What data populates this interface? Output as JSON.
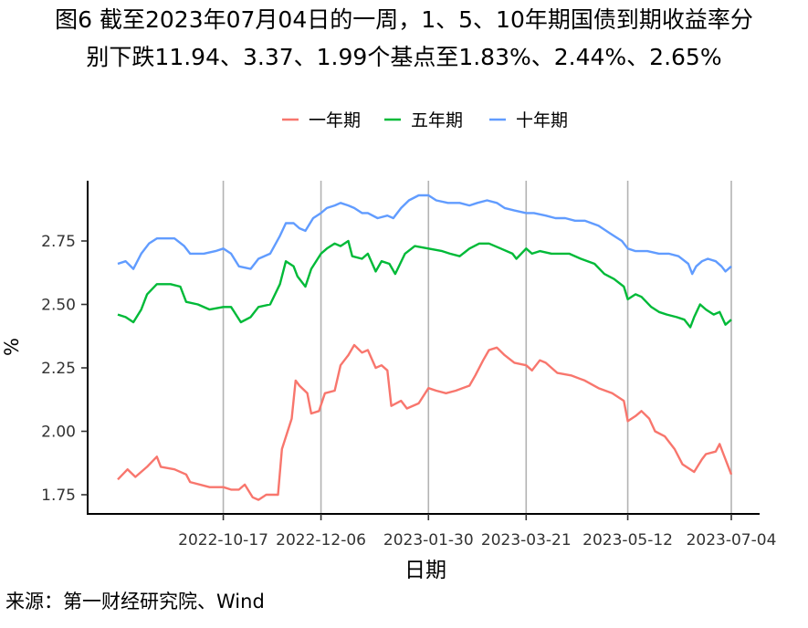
{
  "title_line1": "图6  截至2023年07月04日的一周，1、5、10年期国债到期收益率分",
  "title_line2": "别下跌11.94、3.37、1.99个基点至1.83%、2.44%、2.65%",
  "source": "来源：第一财经研究院、Wind",
  "chart_data": {
    "type": "line",
    "xlabel": "日期",
    "ylabel": "%",
    "x_range": [
      "2022-08-24",
      "2023-07-04"
    ],
    "ylim": [
      1.7,
      2.93
    ],
    "x_ticks": [
      "2022-10-17",
      "2022-12-06",
      "2023-01-30",
      "2023-03-21",
      "2023-05-12",
      "2023-07-04"
    ],
    "y_ticks": [
      "1.75",
      "2.00",
      "2.25",
      "2.50",
      "2.75"
    ],
    "legend_position": "top",
    "grid": "vertical major lines at x ticks",
    "series": [
      {
        "name": "一年期",
        "color": "#F8766D",
        "points": [
          [
            "2022-08-24",
            1.81
          ],
          [
            "2022-08-29",
            1.85
          ],
          [
            "2022-09-02",
            1.82
          ],
          [
            "2022-09-08",
            1.86
          ],
          [
            "2022-09-13",
            1.9
          ],
          [
            "2022-09-15",
            1.86
          ],
          [
            "2022-09-22",
            1.85
          ],
          [
            "2022-09-28",
            1.83
          ],
          [
            "2022-09-30",
            1.8
          ],
          [
            "2022-10-10",
            1.78
          ],
          [
            "2022-10-17",
            1.78
          ],
          [
            "2022-10-21",
            1.77
          ],
          [
            "2022-10-25",
            1.77
          ],
          [
            "2022-10-28",
            1.79
          ],
          [
            "2022-11-01",
            1.74
          ],
          [
            "2022-11-04",
            1.73
          ],
          [
            "2022-11-08",
            1.75
          ],
          [
            "2022-11-14",
            1.75
          ],
          [
            "2022-11-16",
            1.93
          ],
          [
            "2022-11-21",
            2.05
          ],
          [
            "2022-11-23",
            2.2
          ],
          [
            "2022-11-25",
            2.18
          ],
          [
            "2022-11-29",
            2.15
          ],
          [
            "2022-12-01",
            2.07
          ],
          [
            "2022-12-05",
            2.08
          ],
          [
            "2022-12-08",
            2.15
          ],
          [
            "2022-12-13",
            2.16
          ],
          [
            "2022-12-16",
            2.26
          ],
          [
            "2022-12-20",
            2.3
          ],
          [
            "2022-12-23",
            2.34
          ],
          [
            "2022-12-27",
            2.31
          ],
          [
            "2022-12-30",
            2.32
          ],
          [
            "2023-01-03",
            2.25
          ],
          [
            "2023-01-06",
            2.26
          ],
          [
            "2023-01-09",
            2.24
          ],
          [
            "2023-01-11",
            2.1
          ],
          [
            "2023-01-16",
            2.12
          ],
          [
            "2023-01-19",
            2.09
          ],
          [
            "2023-01-25",
            2.11
          ],
          [
            "2023-01-30",
            2.17
          ],
          [
            "2023-02-03",
            2.16
          ],
          [
            "2023-02-08",
            2.15
          ],
          [
            "2023-02-13",
            2.16
          ],
          [
            "2023-02-20",
            2.18
          ],
          [
            "2023-02-23",
            2.22
          ],
          [
            "2023-02-27",
            2.28
          ],
          [
            "2023-03-02",
            2.32
          ],
          [
            "2023-03-06",
            2.33
          ],
          [
            "2023-03-10",
            2.3
          ],
          [
            "2023-03-15",
            2.27
          ],
          [
            "2023-03-21",
            2.26
          ],
          [
            "2023-03-24",
            2.24
          ],
          [
            "2023-03-28",
            2.28
          ],
          [
            "2023-03-31",
            2.27
          ],
          [
            "2023-04-06",
            2.23
          ],
          [
            "2023-04-13",
            2.22
          ],
          [
            "2023-04-20",
            2.2
          ],
          [
            "2023-04-27",
            2.17
          ],
          [
            "2023-05-04",
            2.15
          ],
          [
            "2023-05-10",
            2.12
          ],
          [
            "2023-05-12",
            2.04
          ],
          [
            "2023-05-16",
            2.06
          ],
          [
            "2023-05-19",
            2.08
          ],
          [
            "2023-05-23",
            2.05
          ],
          [
            "2023-05-26",
            2.0
          ],
          [
            "2023-05-31",
            1.98
          ],
          [
            "2023-06-05",
            1.93
          ],
          [
            "2023-06-09",
            1.87
          ],
          [
            "2023-06-13",
            1.85
          ],
          [
            "2023-06-15",
            1.84
          ],
          [
            "2023-06-19",
            1.89
          ],
          [
            "2023-06-21",
            1.91
          ],
          [
            "2023-06-26",
            1.92
          ],
          [
            "2023-06-28",
            1.95
          ],
          [
            "2023-06-30",
            1.91
          ],
          [
            "2023-07-04",
            1.83
          ]
        ]
      },
      {
        "name": "五年期",
        "color": "#00BA38",
        "points": [
          [
            "2022-08-24",
            2.46
          ],
          [
            "2022-08-28",
            2.45
          ],
          [
            "2022-09-01",
            2.43
          ],
          [
            "2022-09-05",
            2.48
          ],
          [
            "2022-09-08",
            2.54
          ],
          [
            "2022-09-13",
            2.58
          ],
          [
            "2022-09-20",
            2.58
          ],
          [
            "2022-09-25",
            2.57
          ],
          [
            "2022-09-28",
            2.51
          ],
          [
            "2022-10-04",
            2.5
          ],
          [
            "2022-10-10",
            2.48
          ],
          [
            "2022-10-17",
            2.49
          ],
          [
            "2022-10-21",
            2.49
          ],
          [
            "2022-10-26",
            2.43
          ],
          [
            "2022-10-31",
            2.45
          ],
          [
            "2022-11-04",
            2.49
          ],
          [
            "2022-11-10",
            2.5
          ],
          [
            "2022-11-15",
            2.58
          ],
          [
            "2022-11-18",
            2.67
          ],
          [
            "2022-11-22",
            2.65
          ],
          [
            "2022-11-24",
            2.61
          ],
          [
            "2022-11-28",
            2.57
          ],
          [
            "2022-12-01",
            2.64
          ],
          [
            "2022-12-06",
            2.7
          ],
          [
            "2022-12-09",
            2.72
          ],
          [
            "2022-12-13",
            2.74
          ],
          [
            "2022-12-16",
            2.73
          ],
          [
            "2022-12-20",
            2.75
          ],
          [
            "2022-12-22",
            2.69
          ],
          [
            "2022-12-27",
            2.68
          ],
          [
            "2022-12-30",
            2.7
          ],
          [
            "2023-01-03",
            2.63
          ],
          [
            "2023-01-06",
            2.67
          ],
          [
            "2023-01-10",
            2.66
          ],
          [
            "2023-01-13",
            2.62
          ],
          [
            "2023-01-18",
            2.7
          ],
          [
            "2023-01-23",
            2.73
          ],
          [
            "2023-01-30",
            2.72
          ],
          [
            "2023-02-06",
            2.71
          ],
          [
            "2023-02-10",
            2.7
          ],
          [
            "2023-02-15",
            2.69
          ],
          [
            "2023-02-20",
            2.72
          ],
          [
            "2023-02-25",
            2.74
          ],
          [
            "2023-03-02",
            2.74
          ],
          [
            "2023-03-08",
            2.72
          ],
          [
            "2023-03-14",
            2.7
          ],
          [
            "2023-03-16",
            2.68
          ],
          [
            "2023-03-21",
            2.72
          ],
          [
            "2023-03-24",
            2.7
          ],
          [
            "2023-03-28",
            2.71
          ],
          [
            "2023-04-03",
            2.7
          ],
          [
            "2023-04-07",
            2.7
          ],
          [
            "2023-04-12",
            2.7
          ],
          [
            "2023-04-18",
            2.68
          ],
          [
            "2023-04-25",
            2.66
          ],
          [
            "2023-04-30",
            2.62
          ],
          [
            "2023-05-05",
            2.6
          ],
          [
            "2023-05-10",
            2.57
          ],
          [
            "2023-05-12",
            2.52
          ],
          [
            "2023-05-16",
            2.54
          ],
          [
            "2023-05-19",
            2.53
          ],
          [
            "2023-05-24",
            2.49
          ],
          [
            "2023-05-28",
            2.47
          ],
          [
            "2023-06-01",
            2.46
          ],
          [
            "2023-06-06",
            2.45
          ],
          [
            "2023-06-10",
            2.44
          ],
          [
            "2023-06-13",
            2.41
          ],
          [
            "2023-06-15",
            2.45
          ],
          [
            "2023-06-18",
            2.5
          ],
          [
            "2023-06-21",
            2.48
          ],
          [
            "2023-06-25",
            2.46
          ],
          [
            "2023-06-28",
            2.47
          ],
          [
            "2023-07-01",
            2.42
          ],
          [
            "2023-07-04",
            2.44
          ]
        ]
      },
      {
        "name": "十年期",
        "color": "#619CFF",
        "points": [
          [
            "2022-08-24",
            2.66
          ],
          [
            "2022-08-28",
            2.67
          ],
          [
            "2022-09-01",
            2.64
          ],
          [
            "2022-09-05",
            2.7
          ],
          [
            "2022-09-09",
            2.74
          ],
          [
            "2022-09-13",
            2.76
          ],
          [
            "2022-09-22",
            2.76
          ],
          [
            "2022-09-27",
            2.73
          ],
          [
            "2022-09-30",
            2.7
          ],
          [
            "2022-10-07",
            2.7
          ],
          [
            "2022-10-13",
            2.71
          ],
          [
            "2022-10-17",
            2.72
          ],
          [
            "2022-10-21",
            2.7
          ],
          [
            "2022-10-25",
            2.65
          ],
          [
            "2022-10-31",
            2.64
          ],
          [
            "2022-11-04",
            2.68
          ],
          [
            "2022-11-10",
            2.7
          ],
          [
            "2022-11-15",
            2.77
          ],
          [
            "2022-11-18",
            2.82
          ],
          [
            "2022-11-22",
            2.82
          ],
          [
            "2022-11-25",
            2.8
          ],
          [
            "2022-11-28",
            2.79
          ],
          [
            "2022-12-02",
            2.84
          ],
          [
            "2022-12-06",
            2.86
          ],
          [
            "2022-12-09",
            2.88
          ],
          [
            "2022-12-13",
            2.89
          ],
          [
            "2022-12-16",
            2.9
          ],
          [
            "2022-12-20",
            2.89
          ],
          [
            "2022-12-23",
            2.88
          ],
          [
            "2022-12-27",
            2.86
          ],
          [
            "2022-12-30",
            2.86
          ],
          [
            "2023-01-04",
            2.84
          ],
          [
            "2023-01-09",
            2.85
          ],
          [
            "2023-01-12",
            2.84
          ],
          [
            "2023-01-16",
            2.88
          ],
          [
            "2023-01-20",
            2.91
          ],
          [
            "2023-01-25",
            2.93
          ],
          [
            "2023-01-30",
            2.93
          ],
          [
            "2023-02-03",
            2.91
          ],
          [
            "2023-02-09",
            2.9
          ],
          [
            "2023-02-15",
            2.9
          ],
          [
            "2023-02-20",
            2.89
          ],
          [
            "2023-02-24",
            2.9
          ],
          [
            "2023-03-01",
            2.91
          ],
          [
            "2023-03-06",
            2.9
          ],
          [
            "2023-03-10",
            2.88
          ],
          [
            "2023-03-15",
            2.87
          ],
          [
            "2023-03-21",
            2.86
          ],
          [
            "2023-03-25",
            2.86
          ],
          [
            "2023-03-31",
            2.85
          ],
          [
            "2023-04-05",
            2.84
          ],
          [
            "2023-04-10",
            2.84
          ],
          [
            "2023-04-15",
            2.83
          ],
          [
            "2023-04-20",
            2.83
          ],
          [
            "2023-04-27",
            2.81
          ],
          [
            "2023-05-03",
            2.78
          ],
          [
            "2023-05-09",
            2.75
          ],
          [
            "2023-05-12",
            2.72
          ],
          [
            "2023-05-16",
            2.71
          ],
          [
            "2023-05-22",
            2.71
          ],
          [
            "2023-05-28",
            2.7
          ],
          [
            "2023-06-02",
            2.7
          ],
          [
            "2023-06-07",
            2.69
          ],
          [
            "2023-06-12",
            2.66
          ],
          [
            "2023-06-14",
            2.62
          ],
          [
            "2023-06-16",
            2.65
          ],
          [
            "2023-06-19",
            2.67
          ],
          [
            "2023-06-22",
            2.68
          ],
          [
            "2023-06-26",
            2.67
          ],
          [
            "2023-06-29",
            2.65
          ],
          [
            "2023-07-01",
            2.63
          ],
          [
            "2023-07-04",
            2.65
          ]
        ]
      }
    ]
  }
}
